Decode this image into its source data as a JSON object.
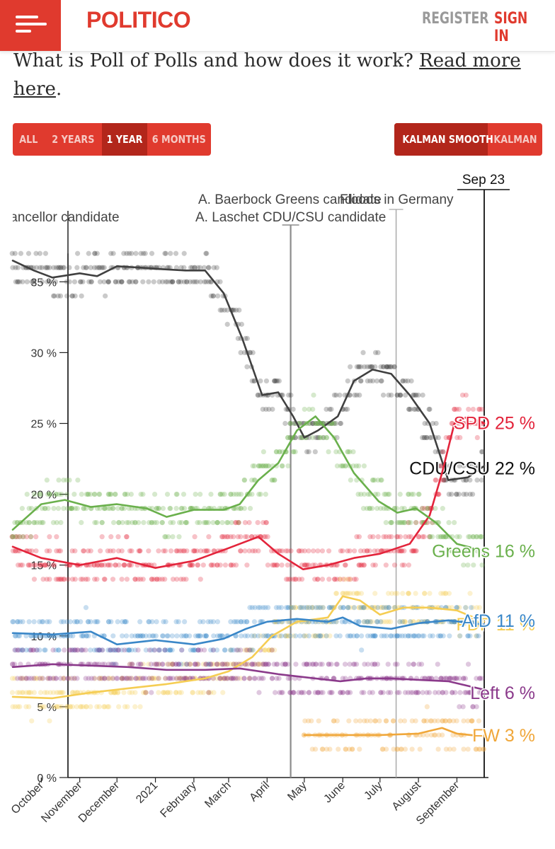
{
  "header": {
    "logo": "POLITICO",
    "register": "REGISTER",
    "sign_in": "SIGN IN"
  },
  "intro": {
    "text": "What is Poll of Polls and how does it work?",
    "link_line1": "Read more",
    "link_line2": "here",
    "period": "."
  },
  "range_buttons": [
    "ALL",
    "2 YEARS",
    "1 YEAR",
    "6 MONTHS"
  ],
  "range_active": "1 YEAR",
  "smooth_buttons": [
    "KALMAN SMOOTH",
    "KALMAN"
  ],
  "smooth_active": "KALMAN SMOOTH",
  "chart_data": {
    "type": "line",
    "xlabel": "",
    "ylabel": "",
    "ylim": [
      0,
      37
    ],
    "yticks": [
      0,
      5,
      10,
      15,
      20,
      25,
      30,
      35
    ],
    "ytick_suffix": " %",
    "x_start": "2020-09-08",
    "x_end": "2021-09-23",
    "month_ticks": [
      {
        "label": "October",
        "date": "2020-10-01"
      },
      {
        "label": "November",
        "date": "2020-11-01"
      },
      {
        "label": "December",
        "date": "2020-12-01"
      },
      {
        "label": "2021",
        "date": "2021-01-01"
      },
      {
        "label": "February",
        "date": "2021-02-01"
      },
      {
        "label": "March",
        "date": "2021-03-01"
      },
      {
        "label": "April",
        "date": "2021-04-01"
      },
      {
        "label": "May",
        "date": "2021-05-01"
      },
      {
        "label": "June",
        "date": "2021-06-01"
      },
      {
        "label": "July",
        "date": "2021-07-01"
      },
      {
        "label": "August",
        "date": "2021-08-01"
      },
      {
        "label": "September",
        "date": "2021-09-01"
      }
    ],
    "events": [
      {
        "label": "Sep 23",
        "date": "2021-09-23"
      },
      {
        "label": "A. Baerbock Greens candidate",
        "date": "2021-04-19"
      },
      {
        "label": "A. Laschet CDU/CSU candidate",
        "date": "2021-04-20"
      },
      {
        "label": "Floods in Germany",
        "date": "2021-07-14"
      },
      {
        "label": "Chancellor candidate",
        "date": "2020-10-01"
      }
    ],
    "series": [
      {
        "name": "CDU/CSU",
        "value_label": "22 %",
        "color": "#404040",
        "points": [
          [
            "2020-09-08",
            36.5
          ],
          [
            "2020-09-25",
            35.8
          ],
          [
            "2020-10-10",
            35.3
          ],
          [
            "2020-11-01",
            35.6
          ],
          [
            "2020-11-15",
            35.4
          ],
          [
            "2020-12-01",
            36.1
          ],
          [
            "2020-12-20",
            36.0
          ],
          [
            "2021-01-05",
            35.9
          ],
          [
            "2021-01-25",
            35.8
          ],
          [
            "2021-02-10",
            35.8
          ],
          [
            "2021-02-25",
            34.2
          ],
          [
            "2021-03-12",
            31.0
          ],
          [
            "2021-03-28",
            27.0
          ],
          [
            "2021-04-10",
            27.2
          ],
          [
            "2021-04-22",
            25.5
          ],
          [
            "2021-05-01",
            24.0
          ],
          [
            "2021-05-12",
            24.5
          ],
          [
            "2021-05-28",
            25.5
          ],
          [
            "2021-06-10",
            28.0
          ],
          [
            "2021-06-25",
            28.8
          ],
          [
            "2021-07-10",
            28.5
          ],
          [
            "2021-07-25",
            27.0
          ],
          [
            "2021-08-10",
            25.0
          ],
          [
            "2021-08-25",
            21.0
          ],
          [
            "2021-09-10",
            21.2
          ],
          [
            "2021-09-23",
            22.0
          ]
        ]
      },
      {
        "name": "SPD",
        "value_label": "25 %",
        "color": "#e3243b",
        "points": [
          [
            "2020-09-08",
            16.3
          ],
          [
            "2020-10-01",
            15.5
          ],
          [
            "2020-11-01",
            15.0
          ],
          [
            "2020-12-01",
            15.5
          ],
          [
            "2021-01-01",
            14.8
          ],
          [
            "2021-02-01",
            15.3
          ],
          [
            "2021-03-01",
            16.2
          ],
          [
            "2021-03-25",
            17.0
          ],
          [
            "2021-04-10",
            15.8
          ],
          [
            "2021-04-30",
            14.7
          ],
          [
            "2021-05-20",
            15.0
          ],
          [
            "2021-06-10",
            15.5
          ],
          [
            "2021-07-01",
            15.8
          ],
          [
            "2021-07-25",
            16.5
          ],
          [
            "2021-08-10",
            18.5
          ],
          [
            "2021-08-20",
            21.5
          ],
          [
            "2021-08-30",
            25.0
          ],
          [
            "2021-09-10",
            25.5
          ],
          [
            "2021-09-23",
            25.0
          ]
        ]
      },
      {
        "name": "Greens",
        "value_label": "16 %",
        "color": "#6ab04c",
        "points": [
          [
            "2020-09-08",
            17.5
          ],
          [
            "2020-10-01",
            19.3
          ],
          [
            "2020-10-20",
            19.6
          ],
          [
            "2020-11-10",
            19.1
          ],
          [
            "2020-12-01",
            19.3
          ],
          [
            "2020-12-25",
            19.0
          ],
          [
            "2021-01-10",
            18.4
          ],
          [
            "2021-02-01",
            18.9
          ],
          [
            "2021-02-25",
            18.9
          ],
          [
            "2021-03-10",
            19.3
          ],
          [
            "2021-03-25",
            21.0
          ],
          [
            "2021-04-10",
            22.2
          ],
          [
            "2021-04-25",
            24.5
          ],
          [
            "2021-05-10",
            25.5
          ],
          [
            "2021-05-25",
            24.0
          ],
          [
            "2021-06-10",
            21.5
          ],
          [
            "2021-06-30",
            19.5
          ],
          [
            "2021-07-15",
            18.7
          ],
          [
            "2021-07-30",
            19.0
          ],
          [
            "2021-08-15",
            18.0
          ],
          [
            "2021-09-01",
            16.5
          ],
          [
            "2021-09-23",
            16.0
          ]
        ]
      },
      {
        "name": "FDP",
        "value_label": "11 %",
        "color": "#f5cd53",
        "points": [
          [
            "2020-09-08",
            5.7
          ],
          [
            "2020-10-10",
            5.6
          ],
          [
            "2020-11-10",
            6.0
          ],
          [
            "2020-12-10",
            6.3
          ],
          [
            "2021-01-10",
            6.6
          ],
          [
            "2021-02-10",
            7.0
          ],
          [
            "2021-03-01",
            7.5
          ],
          [
            "2021-03-20",
            8.5
          ],
          [
            "2021-04-05",
            10.0
          ],
          [
            "2021-04-25",
            11.0
          ],
          [
            "2021-05-20",
            11.3
          ],
          [
            "2021-06-01",
            12.8
          ],
          [
            "2021-06-15",
            12.5
          ],
          [
            "2021-07-01",
            11.5
          ],
          [
            "2021-07-20",
            12.0
          ],
          [
            "2021-08-10",
            12.0
          ],
          [
            "2021-09-01",
            11.8
          ],
          [
            "2021-09-23",
            11.0
          ]
        ]
      },
      {
        "name": "AfD",
        "value_label": "11 %",
        "color": "#3a87c8",
        "points": [
          [
            "2020-09-08",
            10.2
          ],
          [
            "2020-10-10",
            10.1
          ],
          [
            "2020-11-10",
            10.3
          ],
          [
            "2020-12-01",
            9.4
          ],
          [
            "2021-01-01",
            9.7
          ],
          [
            "2021-02-01",
            9.4
          ],
          [
            "2021-02-25",
            9.8
          ],
          [
            "2021-03-15",
            10.5
          ],
          [
            "2021-04-01",
            11.0
          ],
          [
            "2021-04-25",
            11.2
          ],
          [
            "2021-05-20",
            11.0
          ],
          [
            "2021-06-01",
            11.3
          ],
          [
            "2021-06-15",
            10.7
          ],
          [
            "2021-07-10",
            10.5
          ],
          [
            "2021-08-01",
            10.9
          ],
          [
            "2021-08-25",
            11.1
          ],
          [
            "2021-09-23",
            10.8
          ]
        ]
      },
      {
        "name": "Left",
        "value_label": "6 %",
        "color": "#8b3a8b",
        "points": [
          [
            "2020-09-08",
            7.8
          ],
          [
            "2020-10-10",
            8.0
          ],
          [
            "2020-11-10",
            7.9
          ],
          [
            "2020-12-10",
            7.8
          ],
          [
            "2021-01-10",
            7.6
          ],
          [
            "2021-02-10",
            7.6
          ],
          [
            "2021-03-10",
            7.7
          ],
          [
            "2021-04-10",
            7.3
          ],
          [
            "2021-05-10",
            7.0
          ],
          [
            "2021-05-30",
            6.8
          ],
          [
            "2021-06-20",
            7.0
          ],
          [
            "2021-07-10",
            7.0
          ],
          [
            "2021-08-01",
            6.9
          ],
          [
            "2021-08-25",
            6.8
          ],
          [
            "2021-09-23",
            6.2
          ]
        ]
      },
      {
        "name": "FW",
        "value_label": "3 %",
        "color": "#f0a73a",
        "points": [
          [
            "2021-05-01",
            3.0
          ],
          [
            "2021-06-01",
            3.0
          ],
          [
            "2021-07-01",
            3.0
          ],
          [
            "2021-08-01",
            3.1
          ],
          [
            "2021-08-20",
            3.5
          ],
          [
            "2021-09-01",
            3.1
          ],
          [
            "2021-09-23",
            2.9
          ]
        ]
      }
    ]
  }
}
